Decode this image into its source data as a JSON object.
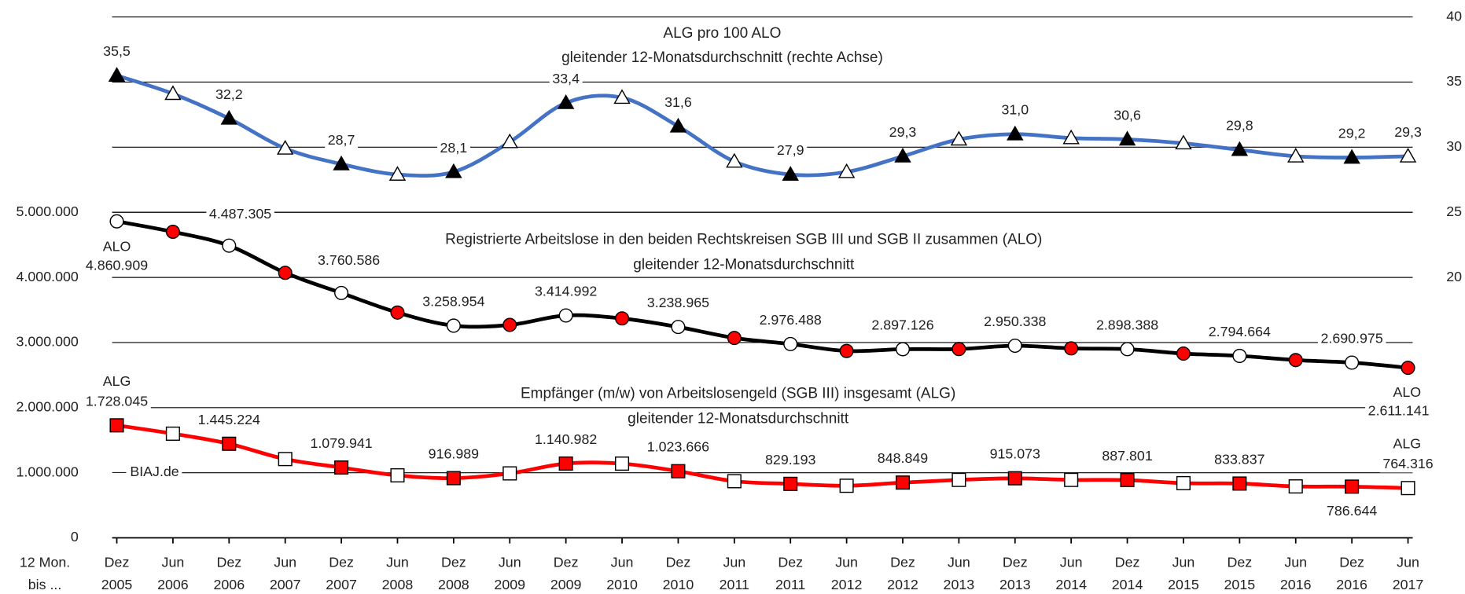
{
  "chart_data": {
    "type": "line",
    "categories": [
      "Dez 2005",
      "Jun 2006",
      "Dez 2006",
      "Jun 2007",
      "Dez 2007",
      "Jun 2008",
      "Dez 2008",
      "Jun 2009",
      "Dez 2009",
      "Jun 2010",
      "Dez 2010",
      "Jun 2011",
      "Dez 2011",
      "Jun 2012",
      "Dez 2012",
      "Jun 2013",
      "Dez 2013",
      "Jun 2014",
      "Dez 2014",
      "Jun 2015",
      "Dez 2015",
      "Jun 2016",
      "Dez 2016",
      "Jun 2017"
    ],
    "series": [
      {
        "name": "ALG pro 100 ALO",
        "color": "#4472c4",
        "axis": "y2",
        "marker": "triangle",
        "marker_colors": [
          "#000000",
          "#ffffff"
        ],
        "values": [
          35.5,
          34.1,
          32.2,
          29.9,
          28.7,
          27.9,
          28.1,
          30.4,
          33.4,
          33.8,
          31.6,
          28.9,
          27.9,
          28.1,
          29.3,
          30.6,
          31.0,
          30.7,
          30.6,
          30.3,
          29.8,
          29.3,
          29.2,
          29.3
        ],
        "value_labels": [
          "35,5",
          null,
          "32,2",
          null,
          "28,7",
          null,
          "28,1",
          null,
          "33,4",
          null,
          "31,6",
          null,
          "27,9",
          null,
          "29,3",
          null,
          "31,0",
          null,
          "30,6",
          null,
          "29,8",
          null,
          "29,2",
          "29,3"
        ]
      },
      {
        "name": "ALO",
        "color": "#000000",
        "marker": "circle",
        "marker_colors": [
          "#ffffff",
          "#ff0000"
        ],
        "values": [
          4860909,
          4700000,
          4487305,
          4070000,
          3760586,
          3460000,
          3258954,
          3270000,
          3414992,
          3370000,
          3238965,
          3070000,
          2976488,
          2870000,
          2897126,
          2900000,
          2950338,
          2910000,
          2898388,
          2830000,
          2794664,
          2730000,
          2690975,
          2611141
        ],
        "value_labels": [
          "4.860.909",
          null,
          "4.487.305",
          null,
          "3.760.586",
          null,
          "3.258.954",
          null,
          "3.414.992",
          null,
          "3.238.965",
          null,
          "2.976.488",
          null,
          "2.897.126",
          null,
          "2.950.338",
          null,
          "2.898.388",
          null,
          "2.794.664",
          null,
          "2.690.975",
          "2.611.141"
        ]
      },
      {
        "name": "ALG",
        "color": "#ff0000",
        "marker": "square",
        "marker_colors": [
          "#ff0000",
          "#ffffff"
        ],
        "values": [
          1728045,
          1600000,
          1445224,
          1210000,
          1079941,
          960000,
          916989,
          990000,
          1140982,
          1140000,
          1023666,
          870000,
          829193,
          800000,
          848849,
          890000,
          915073,
          890000,
          887801,
          840000,
          833837,
          790000,
          786644,
          764316
        ],
        "value_labels": [
          "1.728.045",
          null,
          "1.445.224",
          null,
          "1.079.941",
          null,
          "916.989",
          null,
          "1.140.982",
          null,
          "1.023.666",
          null,
          "829.193",
          null,
          "848.849",
          null,
          "915.073",
          null,
          "887.801",
          null,
          "833.837",
          null,
          "786.644",
          "764.316"
        ]
      }
    ],
    "ylim": [
      0,
      8000000
    ],
    "yticks": [
      0,
      {
        "value": 1000000,
        "label": "1.000.000"
      },
      {
        "value": 2000000,
        "label": "2.000.000"
      },
      {
        "value": 3000000,
        "label": "3.000.000"
      },
      {
        "value": 4000000,
        "label": "4.000.000"
      },
      {
        "value": 5000000,
        "label": "5.000.000"
      }
    ],
    "y2lim": [
      0,
      40
    ],
    "y2ticks": [
      20,
      25,
      30,
      35,
      40
    ],
    "grid": true,
    "annotations": [
      "ALG pro 100 ALO",
      "gleitender 12-Monatsdurchschnitt (rechte Achse)",
      "Registrierte Arbeitslose in den beiden Rechtskreisen SGB III und SGB II zusammen (ALO)",
      "gleitender 12-Monatsdurchschnitt",
      "Empfänger (m/w) von Arbeitslosengeld (SGB III) insgesamt (ALG)",
      "gleitender 12-Monatsdurchschnitt",
      "ALO",
      "ALO",
      "ALG",
      "ALG",
      "— BIAJ.de",
      "12 Mon. bis ..."
    ]
  }
}
